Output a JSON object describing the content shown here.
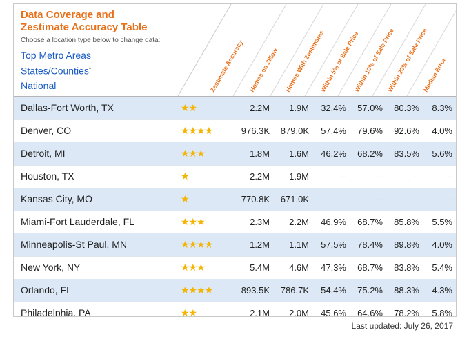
{
  "table": {
    "title_line1": "Data Coverage and",
    "title_line2": "Zestimate Accuracy Table",
    "subtitle": "Choose a location type below to change data:",
    "location_types": [
      "Top Metro Areas",
      "States/Counties",
      "National"
    ],
    "columns": [
      "Zestimate Accuracy",
      "Homes on Zillow",
      "Homes With Zestimates",
      "Within 5% of Sale Price",
      "Within 10% of Sale Price",
      "Within 20% of Sale Price",
      "Median Error"
    ],
    "star_color": "#f4b400",
    "title_color": "#e8711c",
    "link_color": "#1a5bc4",
    "rows": [
      {
        "location": "Dallas-Fort Worth, TX",
        "stars": "★★",
        "homes": "2.2M",
        "zestimates": "1.9M",
        "w5": "32.4%",
        "w10": "57.0%",
        "w20": "80.3%",
        "median": "8.3%"
      },
      {
        "location": "Denver, CO",
        "stars": "★★★★",
        "homes": "976.3K",
        "zestimates": "879.0K",
        "w5": "57.4%",
        "w10": "79.6%",
        "w20": "92.6%",
        "median": "4.0%"
      },
      {
        "location": "Detroit, MI",
        "stars": "★★★",
        "homes": "1.8M",
        "zestimates": "1.6M",
        "w5": "46.2%",
        "w10": "68.2%",
        "w20": "83.5%",
        "median": "5.6%"
      },
      {
        "location": "Houston, TX",
        "stars": "★",
        "homes": "2.2M",
        "zestimates": "1.9M",
        "w5": "--",
        "w10": "--",
        "w20": "--",
        "median": "--"
      },
      {
        "location": "Kansas City, MO",
        "stars": "★",
        "homes": "770.8K",
        "zestimates": "671.0K",
        "w5": "--",
        "w10": "--",
        "w20": "--",
        "median": "--"
      },
      {
        "location": "Miami-Fort Lauderdale, FL",
        "stars": "★★★",
        "homes": "2.3M",
        "zestimates": "2.2M",
        "w5": "46.9%",
        "w10": "68.7%",
        "w20": "85.8%",
        "median": "5.5%"
      },
      {
        "location": "Minneapolis-St Paul, MN",
        "stars": "★★★★",
        "homes": "1.2M",
        "zestimates": "1.1M",
        "w5": "57.5%",
        "w10": "78.4%",
        "w20": "89.8%",
        "median": "4.0%"
      },
      {
        "location": "New York, NY",
        "stars": "★★★",
        "homes": "5.4M",
        "zestimates": "4.6M",
        "w5": "47.3%",
        "w10": "68.7%",
        "w20": "83.8%",
        "median": "5.4%"
      },
      {
        "location": "Orlando, FL",
        "stars": "★★★★",
        "homes": "893.5K",
        "zestimates": "786.7K",
        "w5": "54.4%",
        "w10": "75.2%",
        "w20": "88.3%",
        "median": "4.3%"
      },
      {
        "location": "Philadelphia, PA",
        "stars": "★★",
        "homes": "2.1M",
        "zestimates": "2.0M",
        "w5": "45.6%",
        "w10": "64.6%",
        "w20": "78.2%",
        "median": "5.8%"
      }
    ]
  },
  "footer": {
    "last_updated": "Last updated: July 26, 2017"
  }
}
